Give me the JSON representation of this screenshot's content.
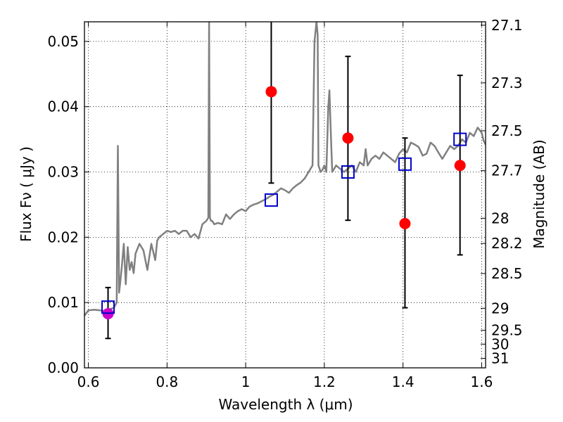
{
  "chart_data": {
    "type": "scatter",
    "xlabel": "Wavelength  λ (μm)",
    "ylabel": "Flux  Fν  ( μJy )",
    "ylabel_right": "Magnitude (AB)",
    "xlim": [
      0.59,
      1.61
    ],
    "ylim": [
      0.0,
      0.053
    ],
    "grid": true,
    "x_ticks": [
      0.6,
      0.8,
      1.0,
      1.2,
      1.4,
      1.6
    ],
    "x_tick_labels": [
      "0.6",
      "0.8",
      "1",
      "1.2",
      "1.4",
      "1.6"
    ],
    "y_ticks": [
      0.0,
      0.01,
      0.02,
      0.03,
      0.04,
      0.05
    ],
    "y_tick_labels": [
      "0.00",
      "0.01",
      "0.02",
      "0.03",
      "0.04",
      "0.05"
    ],
    "right_ticks": [
      {
        "label": "27.1",
        "flux": 0.05248
      },
      {
        "label": "27.3",
        "flux": 0.04365
      },
      {
        "label": "27.5",
        "flux": 0.03631
      },
      {
        "label": "27.7",
        "flux": 0.0302
      },
      {
        "label": "28",
        "flux": 0.02291
      },
      {
        "label": "28.2",
        "flux": 0.01905
      },
      {
        "label": "28.5",
        "flux": 0.01445
      },
      {
        "label": "29",
        "flux": 0.00912
      },
      {
        "label": "29.5",
        "flux": 0.00575
      },
      {
        "label": "30",
        "flux": 0.00363
      },
      {
        "label": "31",
        "flux": 0.00145
      }
    ],
    "series": [
      {
        "kind": "line",
        "color": "#808080",
        "x": [
          0.59,
          0.6,
          0.615,
          0.63,
          0.64,
          0.65,
          0.655,
          0.665,
          0.672,
          0.675,
          0.678,
          0.68,
          0.685,
          0.69,
          0.695,
          0.7,
          0.705,
          0.71,
          0.715,
          0.72,
          0.73,
          0.74,
          0.75,
          0.76,
          0.77,
          0.775,
          0.78,
          0.79,
          0.8,
          0.81,
          0.82,
          0.83,
          0.84,
          0.85,
          0.86,
          0.87,
          0.88,
          0.89,
          0.9,
          0.905,
          0.907,
          0.909,
          0.912,
          0.915,
          0.92,
          0.93,
          0.94,
          0.95,
          0.96,
          0.97,
          0.98,
          0.99,
          1.0,
          1.01,
          1.02,
          1.03,
          1.04,
          1.05,
          1.06,
          1.07,
          1.08,
          1.09,
          1.1,
          1.11,
          1.12,
          1.13,
          1.14,
          1.15,
          1.16,
          1.17,
          1.175,
          1.18,
          1.183,
          1.185,
          1.188,
          1.19,
          1.195,
          1.2,
          1.205,
          1.21,
          1.213,
          1.217,
          1.22,
          1.225,
          1.23,
          1.24,
          1.25,
          1.26,
          1.27,
          1.28,
          1.29,
          1.3,
          1.305,
          1.31,
          1.32,
          1.33,
          1.34,
          1.35,
          1.36,
          1.37,
          1.38,
          1.39,
          1.4,
          1.41,
          1.42,
          1.43,
          1.44,
          1.45,
          1.46,
          1.47,
          1.48,
          1.49,
          1.5,
          1.51,
          1.52,
          1.53,
          1.54,
          1.55,
          1.56,
          1.57,
          1.58,
          1.59,
          1.6,
          1.605,
          1.61
        ],
        "y": [
          0.008,
          0.0088,
          0.0089,
          0.0088,
          0.0087,
          0.0088,
          0.009,
          0.0092,
          0.01,
          0.034,
          0.0115,
          0.0125,
          0.0155,
          0.019,
          0.0128,
          0.0185,
          0.015,
          0.0162,
          0.0145,
          0.0175,
          0.019,
          0.018,
          0.015,
          0.019,
          0.0165,
          0.0195,
          0.02,
          0.0205,
          0.021,
          0.0208,
          0.021,
          0.0205,
          0.021,
          0.021,
          0.02,
          0.0205,
          0.0198,
          0.022,
          0.0225,
          0.023,
          0.053,
          0.023,
          0.0225,
          0.0225,
          0.022,
          0.0222,
          0.022,
          0.0235,
          0.0228,
          0.0235,
          0.024,
          0.0243,
          0.024,
          0.0247,
          0.025,
          0.0252,
          0.0255,
          0.0258,
          0.0262,
          0.0265,
          0.027,
          0.0275,
          0.0272,
          0.0268,
          0.0275,
          0.028,
          0.0284,
          0.029,
          0.03,
          0.031,
          0.05,
          0.053,
          0.051,
          0.031,
          0.0305,
          0.03,
          0.0303,
          0.031,
          0.03,
          0.04,
          0.0425,
          0.035,
          0.03,
          0.0305,
          0.031,
          0.0305,
          0.03,
          0.0305,
          0.031,
          0.03,
          0.0315,
          0.031,
          0.0335,
          0.031,
          0.032,
          0.0325,
          0.032,
          0.033,
          0.0325,
          0.032,
          0.0315,
          0.0328,
          0.0335,
          0.033,
          0.0345,
          0.0342,
          0.0338,
          0.0325,
          0.0328,
          0.0345,
          0.034,
          0.033,
          0.032,
          0.033,
          0.034,
          0.0335,
          0.034,
          0.035,
          0.0345,
          0.036,
          0.0355,
          0.0368,
          0.036,
          0.0348,
          0.0342
        ]
      },
      {
        "kind": "points",
        "marker": "circle",
        "color": "#ff0000",
        "x": [
          1.065,
          1.26,
          1.405,
          1.545
        ],
        "y": [
          0.0423,
          0.0352,
          0.0221,
          0.031
        ],
        "yerr_low": [
          0.0283,
          0.0226,
          0.0092,
          0.0173
        ],
        "yerr_high": [
          0.0535,
          0.0477,
          0.0352,
          0.0448
        ]
      },
      {
        "kind": "points",
        "marker": "circle",
        "color": "#cc00cc",
        "x": [
          0.65
        ],
        "y": [
          0.0083
        ],
        "yerr_low": [
          0.0045
        ],
        "yerr_high": [
          0.0123
        ]
      },
      {
        "kind": "points",
        "marker": "square",
        "color": "#0000cc",
        "x": [
          0.65,
          1.065,
          1.26,
          1.405,
          1.545
        ],
        "y": [
          0.0093,
          0.0257,
          0.03,
          0.0312,
          0.035
        ]
      }
    ]
  }
}
